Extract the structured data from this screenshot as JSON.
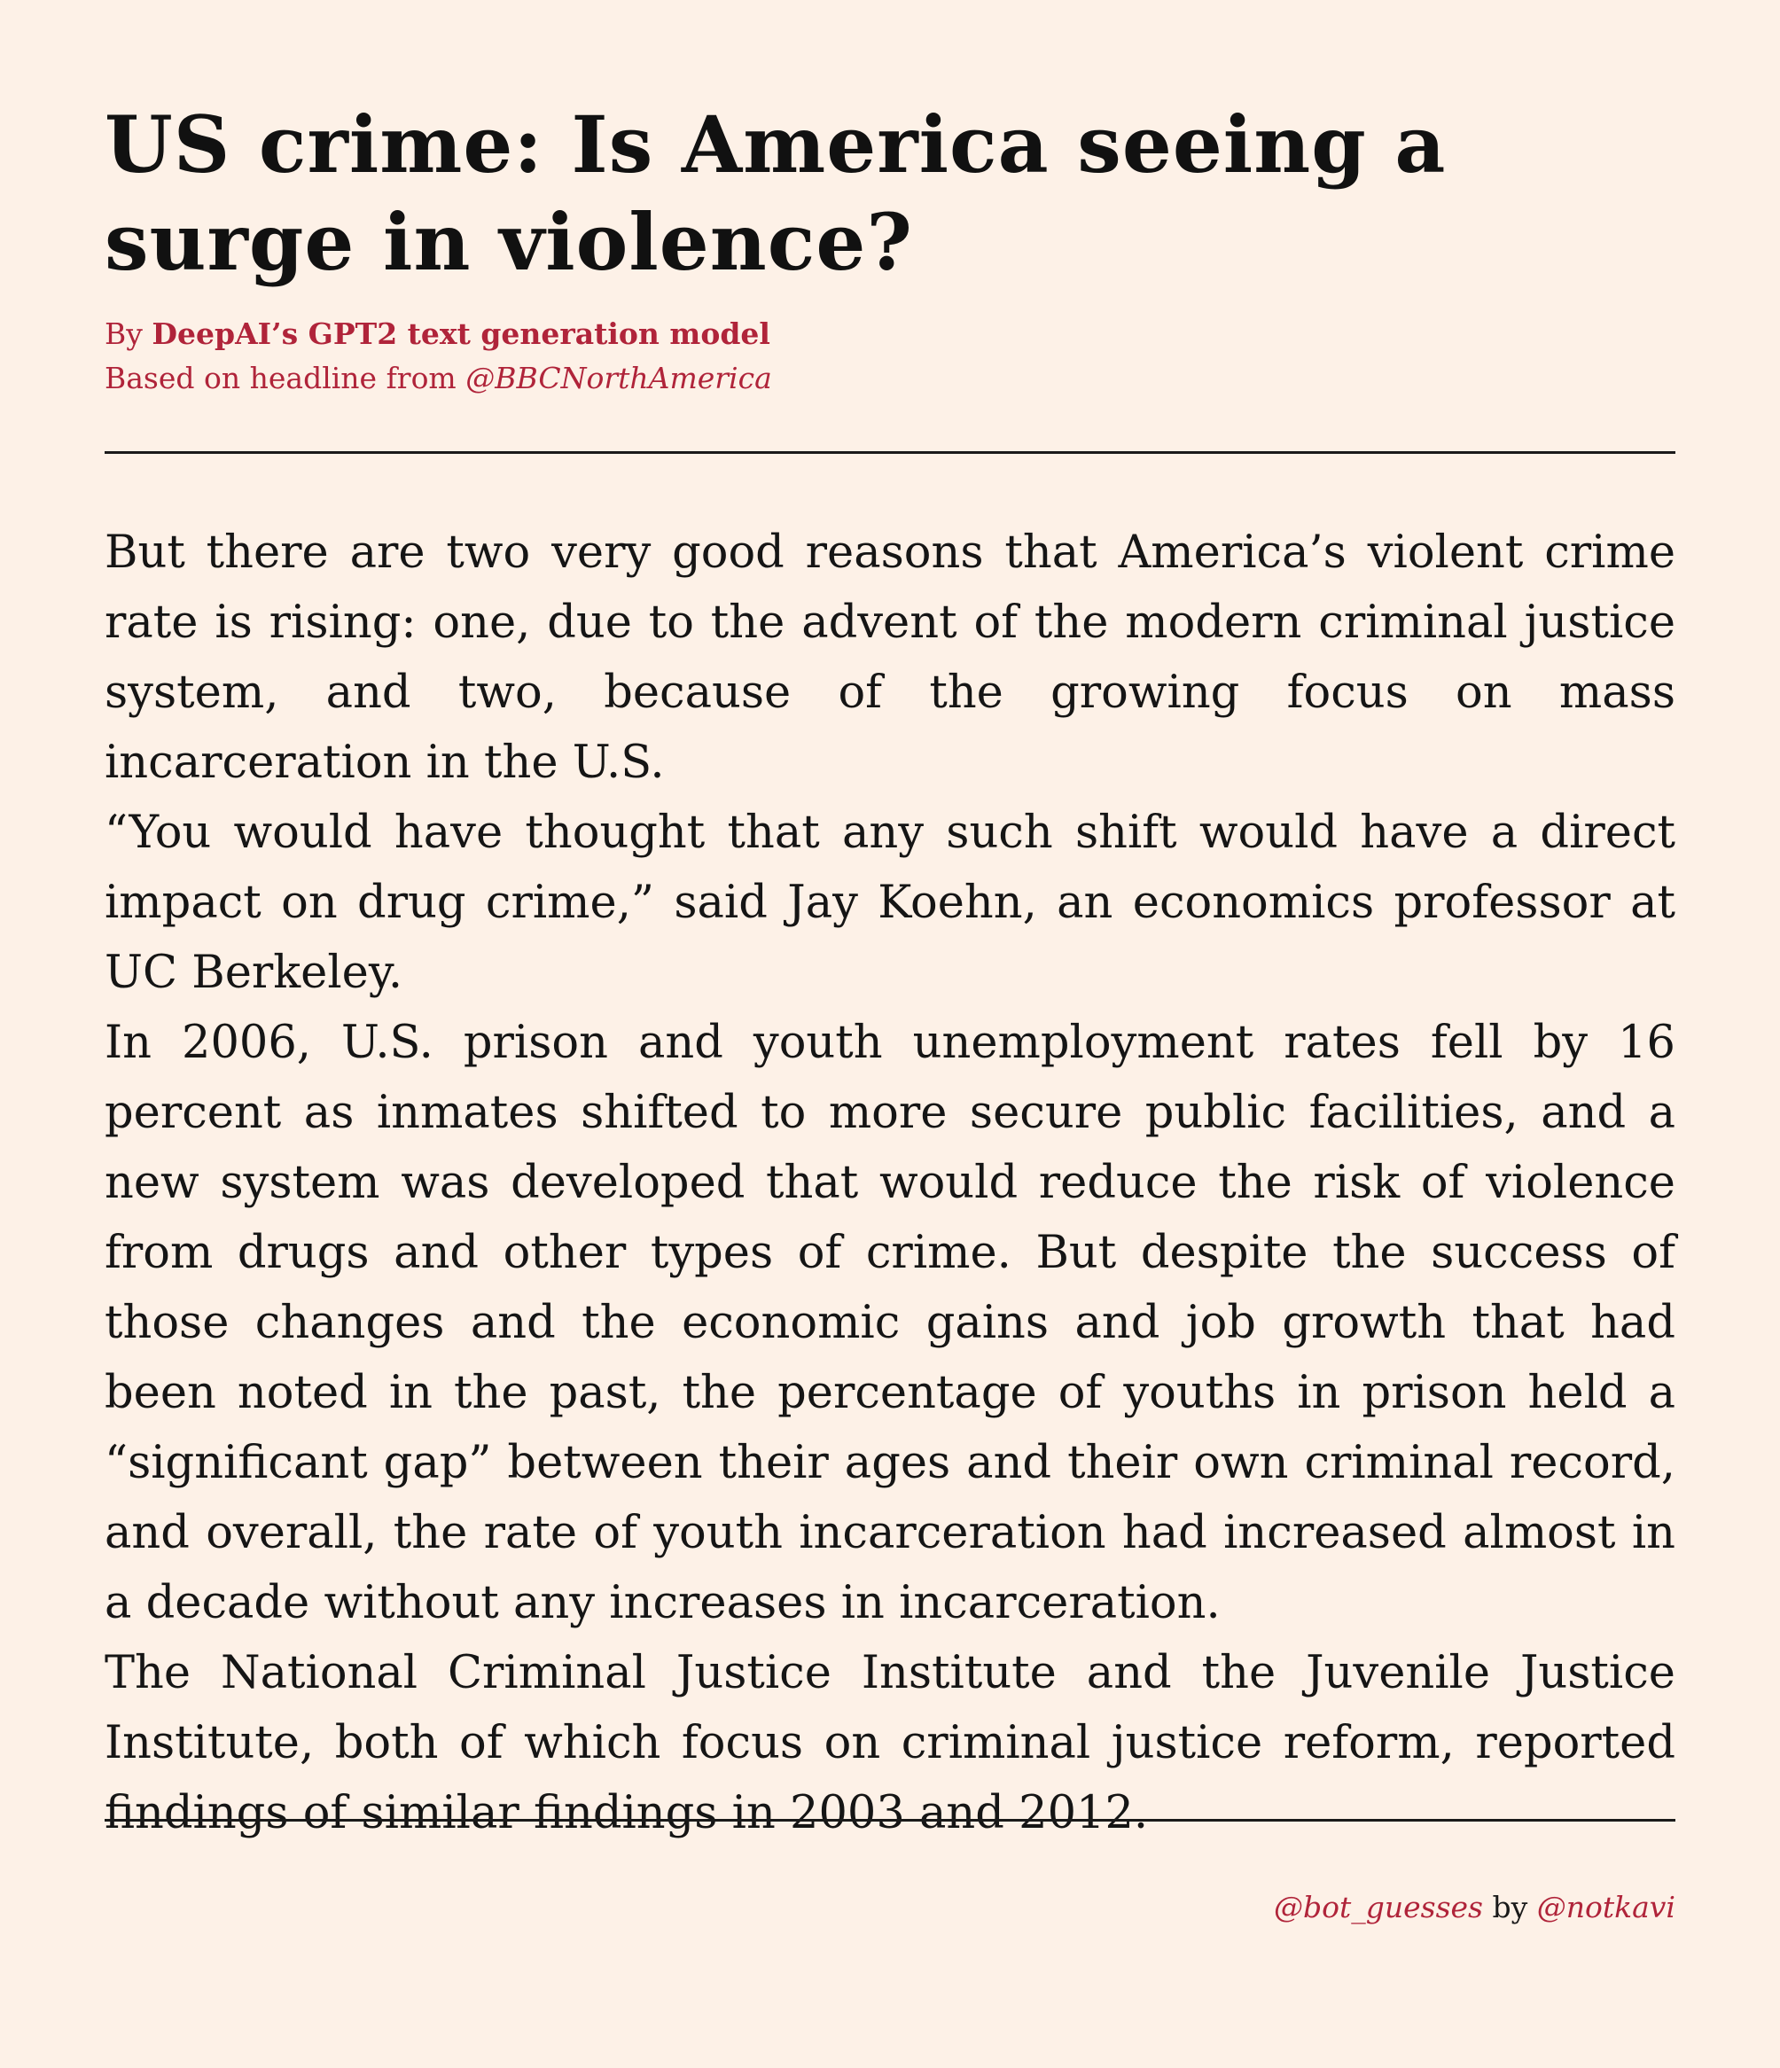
{
  "headline": "US crime: Is America seeing a surge in violence?",
  "byline": {
    "prefix": "By ",
    "author": "DeepAI’s GPT2 text generation model",
    "source_prefix": "Based on headline from ",
    "source_handle": "@BBCNorthAmerica"
  },
  "article": {
    "paragraphs": [
      "But there are two very good reasons that America’s violent crime rate is rising: one, due to the advent of the modern criminal justice system, and two, because of the growing focus on mass incarceration in the U.S.",
      "“You would have thought that any such shift would have a direct impact on drug crime,” said Jay Koehn, an economics professor at UC Berkeley.",
      "In 2006, U.S. prison and youth unemployment rates fell by 16 percent as inmates shifted to more secure public facilities, and a new system was developed that would reduce the risk of violence from drugs and other types of crime.  But despite the success of those changes and the economic gains and job growth that had been noted in the past, the percentage of youths in prison held a “significant gap” between their ages and their own criminal record, and overall, the rate of youth incarceration had increased almost in a decade without any increases in incarceration.",
      "The National Criminal Justice Institute and the Juvenile Justice Institute, both of which focus on criminal justice reform, reported findings of similar findings in 2003 and 2012."
    ]
  },
  "footer": {
    "bot_handle": "@bot_guesses",
    "by": " by ",
    "creator_handle": "@notkavi"
  },
  "colors": {
    "background": "#fdf1e7",
    "accent": "#b0243a",
    "text": "#111111"
  }
}
